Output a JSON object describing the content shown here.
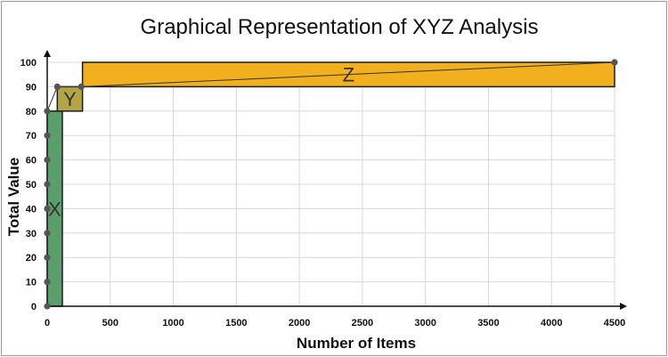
{
  "chart_data": {
    "type": "line",
    "title": "Graphical Representation of XYZ Analysis",
    "xlabel": "Number of Items",
    "ylabel": "Total Value",
    "xlim": [
      0,
      4500
    ],
    "ylim": [
      0,
      100
    ],
    "x_ticks": [
      "0",
      "500",
      "1000",
      "1500",
      "2000",
      "2500",
      "3000",
      "3500",
      "4000",
      "4500"
    ],
    "y_ticks": [
      "0",
      "10",
      "20",
      "30",
      "40",
      "50",
      "60",
      "70",
      "80",
      "90",
      "100"
    ],
    "grid": true,
    "series": [
      {
        "x": [
          0,
          0,
          0,
          0,
          0,
          0,
          0,
          0,
          0,
          80,
          270,
          4500
        ],
        "y": [
          0,
          10,
          20,
          30,
          40,
          50,
          60,
          70,
          80,
          90,
          90,
          100
        ]
      }
    ],
    "regions": [
      {
        "label": "X",
        "x": [
          0,
          120
        ],
        "y": [
          0,
          80
        ],
        "color": "#5a9e6c"
      },
      {
        "label": "Y",
        "x": [
          80,
          280
        ],
        "y": [
          80,
          90
        ],
        "color": "#b3a545"
      },
      {
        "label": "Z",
        "x": [
          280,
          4500
        ],
        "y": [
          90,
          100
        ],
        "color": "#f2b01e"
      }
    ]
  }
}
